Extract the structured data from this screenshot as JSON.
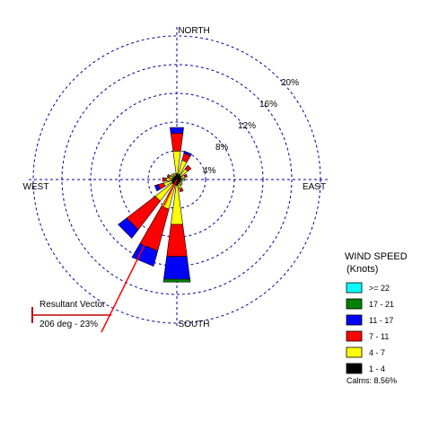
{
  "chart_data": {
    "type": "wind-rose",
    "rings_percent": [
      4,
      8,
      12,
      16,
      20
    ],
    "ring_labels": [
      "4%",
      "8%",
      "12%",
      "16%",
      "20%"
    ],
    "direction_labels": {
      "north": "NORTH",
      "east": "EAST",
      "south": "SOUTH",
      "west": "WEST"
    },
    "legend": {
      "title": "WIND SPEED",
      "subtitle": "(Knots)",
      "bins": [
        {
          "label": ">= 22",
          "color": "#00ffff"
        },
        {
          "label": "17 - 21",
          "color": "#008000"
        },
        {
          "label": "11 - 17",
          "color": "#0000ff"
        },
        {
          "label": "7 - 11",
          "color": "#ff0000"
        },
        {
          "label": "4 - 7",
          "color": "#ffff00"
        },
        {
          "label": "1 - 4",
          "color": "#000000"
        }
      ],
      "calms": "Calms: 8.56%"
    },
    "resultant": {
      "label": "Resultant Vector",
      "value": "206 deg - 23%",
      "direction_deg": 206
    },
    "directions_deg": [
      0,
      22.5,
      45,
      67.5,
      90,
      112.5,
      135,
      157.5,
      180,
      202.5,
      225,
      247.5,
      270,
      292.5,
      315,
      337.5
    ],
    "segments": [
      [
        0.8,
        3.2,
        2.5,
        0.8,
        0,
        0
      ],
      [
        0.8,
        2.0,
        1.0,
        0.3,
        0,
        0
      ],
      [
        0.7,
        1.2,
        0.6,
        0,
        0,
        0
      ],
      [
        0.6,
        0.6,
        0.3,
        0,
        0,
        0
      ],
      [
        0.6,
        0.5,
        0,
        0,
        0,
        0
      ],
      [
        0.5,
        0.3,
        0,
        0,
        0,
        0
      ],
      [
        0.5,
        0.5,
        0,
        0,
        0,
        0
      ],
      [
        0.6,
        0.8,
        0.4,
        0,
        0,
        0
      ],
      [
        0.8,
        5.5,
        4.5,
        3.2,
        0.4,
        0
      ],
      [
        0.8,
        3.5,
        6.0,
        2.2,
        0,
        0
      ],
      [
        0.8,
        3.0,
        5.0,
        1.5,
        0,
        0
      ],
      [
        0.7,
        1.2,
        0.8,
        0.5,
        0,
        0
      ],
      [
        0.6,
        0.9,
        0.5,
        0,
        0,
        0
      ],
      [
        0.5,
        0.6,
        0.3,
        0,
        0,
        0
      ],
      [
        0.5,
        0.5,
        0,
        0,
        0,
        0
      ],
      [
        0.5,
        0.4,
        0,
        0,
        0,
        0
      ]
    ]
  }
}
